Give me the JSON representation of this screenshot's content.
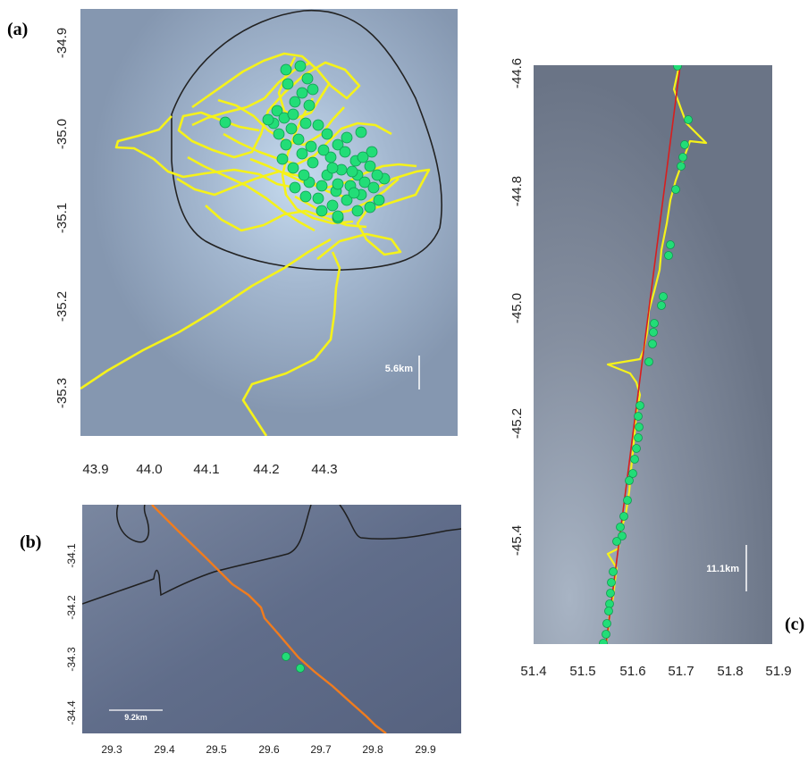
{
  "panels": [
    {
      "label": "(a)",
      "x_ticks": [
        "43.9",
        "44.0",
        "44.1",
        "44.2",
        "44.3"
      ],
      "y_ticks": [
        "-34.9",
        "-35.0",
        "-35.1",
        "-35.2",
        "-35.3"
      ],
      "scale_label": "5.6km",
      "colors": {
        "track": "#f5f21a",
        "points": "#22dd77",
        "contour": "#222222",
        "background": "#8ea3bc"
      }
    },
    {
      "label": "(b)",
      "x_ticks": [
        "29.3",
        "29.4",
        "29.5",
        "29.6",
        "29.7",
        "29.8",
        "29.9"
      ],
      "y_ticks": [
        "-34.1",
        "-34.2",
        "-34.3",
        "-34.4"
      ],
      "scale_label": "9.2km",
      "colors": {
        "track": "#f07c1e",
        "points": "#22dd77",
        "contour": "#222222",
        "background": "#5d6b88"
      }
    },
    {
      "label": "(c)",
      "x_ticks": [
        "51.4",
        "51.5",
        "51.6",
        "51.7",
        "51.8",
        "51.9"
      ],
      "y_ticks": [
        "-44.6",
        "-44.8",
        "-45.0",
        "-45.2",
        "-45.4"
      ],
      "scale_label": "11.1km",
      "colors": {
        "track": "#f5f21a",
        "line": "#d81e1e",
        "points": "#22dd77",
        "background": "#6e7a8c"
      }
    }
  ]
}
